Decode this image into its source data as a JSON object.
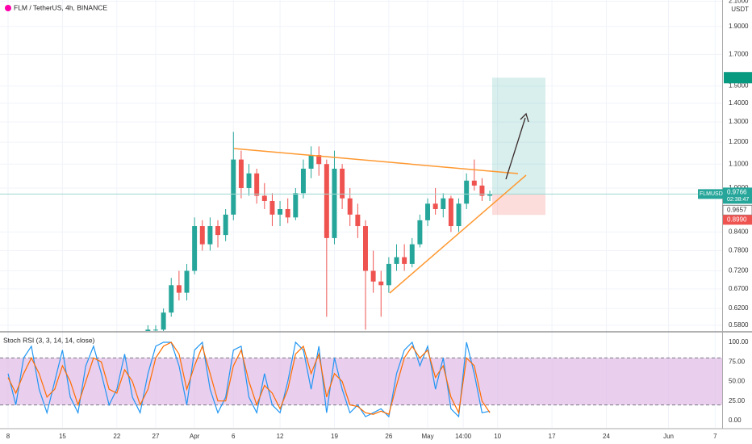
{
  "chart_data": [
    {
      "type": "candlestick",
      "title": "FLM / TetherUS, 4h, BINANCE",
      "currency": "USDT",
      "symbol": "FLMUSDT",
      "countdown": "02:38:47",
      "x": [
        18,
        19,
        20,
        21,
        22,
        23,
        24,
        25,
        26,
        27,
        28,
        29,
        30,
        31,
        32,
        33,
        34,
        35,
        36,
        37,
        38,
        39,
        40,
        41,
        42,
        43,
        44,
        45,
        46,
        47,
        48,
        49,
        50,
        51,
        52,
        53,
        54,
        55,
        56,
        57,
        58,
        59,
        60,
        61,
        62
      ],
      "open": [
        0.56,
        0.57,
        0.57,
        0.61,
        0.68,
        0.66,
        0.72,
        0.86,
        0.8,
        0.86,
        0.83,
        0.9,
        1.12,
        1.0,
        1.06,
        0.97,
        0.95,
        0.9,
        0.92,
        0.89,
        0.98,
        1.08,
        1.14,
        1.1,
        0.82,
        1.08,
        0.96,
        0.9,
        0.86,
        0.72,
        0.69,
        0.68,
        0.74,
        0.76,
        0.74,
        0.8,
        0.88,
        0.94,
        0.92,
        0.96,
        0.86,
        0.94,
        1.03,
        1.01,
        0.97
      ],
      "high": [
        0.58,
        0.58,
        0.62,
        0.7,
        0.72,
        0.74,
        0.89,
        0.88,
        0.89,
        0.88,
        0.92,
        1.25,
        1.16,
        1.1,
        1.08,
        1.02,
        0.98,
        0.95,
        0.96,
        1.0,
        1.12,
        1.18,
        1.18,
        1.12,
        1.16,
        1.1,
        1.0,
        0.94,
        0.88,
        0.78,
        0.72,
        0.76,
        0.8,
        0.8,
        0.82,
        0.9,
        0.96,
        1.0,
        0.98,
        0.97,
        0.96,
        1.06,
        1.12,
        1.04,
        0.99
      ],
      "low": [
        0.55,
        0.55,
        0.56,
        0.6,
        0.64,
        0.64,
        0.71,
        0.78,
        0.78,
        0.79,
        0.81,
        0.88,
        0.96,
        0.97,
        0.94,
        0.92,
        0.86,
        0.86,
        0.87,
        0.88,
        0.96,
        1.04,
        1.05,
        0.6,
        0.8,
        0.92,
        0.86,
        0.82,
        0.57,
        0.66,
        0.6,
        0.66,
        0.72,
        0.72,
        0.73,
        0.79,
        0.86,
        0.9,
        0.89,
        0.84,
        0.84,
        0.92,
        0.99,
        0.95,
        0.95
      ],
      "close": [
        0.57,
        0.57,
        0.61,
        0.68,
        0.66,
        0.72,
        0.86,
        0.8,
        0.86,
        0.83,
        0.9,
        1.12,
        1.0,
        1.06,
        0.97,
        0.95,
        0.9,
        0.92,
        0.89,
        0.98,
        1.08,
        1.14,
        1.1,
        0.82,
        1.08,
        0.96,
        0.9,
        0.86,
        0.72,
        0.69,
        0.68,
        0.74,
        0.76,
        0.74,
        0.8,
        0.88,
        0.94,
        0.92,
        0.96,
        0.86,
        0.94,
        1.03,
        1.01,
        0.97,
        0.9766
      ],
      "up_color": "#26a69a",
      "down_color": "#ef5350",
      "log_scale": true,
      "ylim": [
        0.567,
        2.11
      ],
      "yticks": [
        {
          "value": 0.58,
          "label": "0.5800"
        },
        {
          "value": 0.62,
          "label": "0.6200"
        },
        {
          "value": 0.67,
          "label": "0.6700"
        },
        {
          "value": 0.72,
          "label": "0.7200"
        },
        {
          "value": 0.78,
          "label": "0.7800"
        },
        {
          "value": 0.84,
          "label": "0.8400"
        },
        {
          "value": 1.0,
          "label": "1.0000"
        },
        {
          "value": 1.1,
          "label": "1.1000"
        },
        {
          "value": 1.2,
          "label": "1.2000"
        },
        {
          "value": 1.3,
          "label": "1.3000"
        },
        {
          "value": 1.4,
          "label": "1.4000"
        },
        {
          "value": 1.5,
          "label": "1.5000"
        },
        {
          "value": 1.7,
          "label": "1.7000"
        },
        {
          "value": 1.9,
          "label": "1.9000"
        },
        {
          "value": 2.1,
          "label": "2.1000"
        }
      ],
      "price_markers": [
        {
          "value": 0.9657,
          "label": "0.9657"
        },
        {
          "value": 0.899,
          "label": "0.8990"
        }
      ],
      "position": {
        "entry": 0.975,
        "stop": 0.899,
        "target": 1.55
      },
      "grid": true
    },
    {
      "type": "line",
      "title": "Stoch RSI (3, 3, 14, 14, close)",
      "x": [
        0,
        1,
        2,
        3,
        4,
        5,
        6,
        7,
        8,
        9,
        10,
        11,
        12,
        13,
        14,
        15,
        16,
        17,
        18,
        19,
        20,
        21,
        22,
        23,
        24,
        25,
        26,
        27,
        28,
        29,
        30,
        31,
        32,
        33,
        34,
        35,
        36,
        37,
        38,
        39,
        40,
        41,
        42,
        43,
        44,
        45,
        46,
        47,
        48,
        49,
        50,
        51,
        52,
        53,
        54,
        55,
        56,
        57,
        58,
        59,
        60,
        61,
        62
      ],
      "series": [
        {
          "color": "#2196f3",
          "values": [
            60,
            20,
            80,
            95,
            40,
            10,
            50,
            90,
            30,
            10,
            70,
            95,
            60,
            20,
            40,
            85,
            30,
            10,
            60,
            95,
            100,
            100,
            70,
            20,
            90,
            100,
            40,
            10,
            30,
            90,
            95,
            30,
            10,
            60,
            20,
            10,
            50,
            100,
            90,
            40,
            95,
            10,
            80,
            40,
            10,
            20,
            5,
            10,
            15,
            5,
            60,
            90,
            100,
            70,
            95,
            40,
            80,
            15,
            5,
            100,
            60,
            10,
            12
          ]
        },
        {
          "color": "#ff6d00",
          "values": [
            55,
            35,
            60,
            80,
            60,
            30,
            40,
            70,
            50,
            20,
            50,
            80,
            75,
            40,
            35,
            65,
            50,
            20,
            40,
            80,
            95,
            100,
            85,
            40,
            70,
            95,
            60,
            25,
            25,
            70,
            90,
            50,
            20,
            45,
            35,
            15,
            40,
            85,
            95,
            60,
            85,
            30,
            60,
            50,
            20,
            18,
            10,
            8,
            12,
            8,
            45,
            80,
            95,
            80,
            90,
            55,
            70,
            30,
            10,
            80,
            70,
            25,
            10
          ]
        }
      ],
      "bands": [
        20,
        80
      ],
      "band_color": "#e1bee7",
      "ylim": [
        -9.3,
        112.4
      ],
      "yticks": [
        {
          "value": 0,
          "label": "0.00"
        },
        {
          "value": 25,
          "label": "25.00"
        },
        {
          "value": 50,
          "label": "50.00"
        },
        {
          "value": 75,
          "label": "75.00"
        },
        {
          "value": 100,
          "label": "100.00"
        }
      ],
      "xlim": [
        -1.04,
        91.9
      ],
      "xticks": [
        {
          "value": 0,
          "label": "8"
        },
        {
          "value": 7,
          "label": "15"
        },
        {
          "value": 14,
          "label": "22"
        },
        {
          "value": 19,
          "label": "27"
        },
        {
          "value": 24,
          "label": "Apr"
        },
        {
          "value": 29,
          "label": "6"
        },
        {
          "value": 35,
          "label": "12"
        },
        {
          "value": 42,
          "label": "19"
        },
        {
          "value": 49,
          "label": "26"
        },
        {
          "value": 54,
          "label": "May"
        },
        {
          "value": 58.58,
          "label": "14:00"
        },
        {
          "value": 63,
          "label": "10"
        },
        {
          "value": 70,
          "label": "17"
        },
        {
          "value": 77,
          "label": "24"
        },
        {
          "value": 85,
          "label": "Jun"
        },
        {
          "value": 91,
          "label": "7"
        }
      ]
    }
  ]
}
